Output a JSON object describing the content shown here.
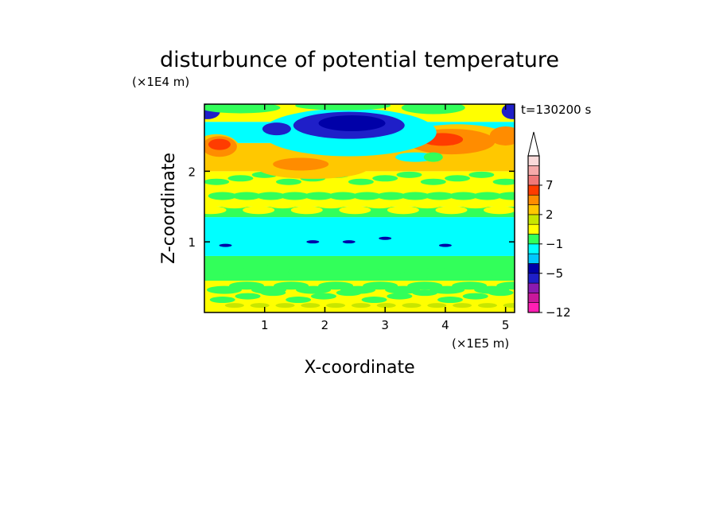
{
  "chart_data": {
    "type": "heatmap",
    "title": "disturbunce of potential temperature",
    "xlabel": "X-coordinate",
    "ylabel": "Z-coordinate",
    "x_scale_label": "(×1E5 m)",
    "y_scale_label": "(×1E4 m)",
    "time_label": "t=130200 s",
    "xlim": [
      0,
      5.15
    ],
    "ylim": [
      0,
      2.95
    ],
    "x_ticks": [
      "1",
      "2",
      "3",
      "4",
      "5"
    ],
    "y_ticks": [
      "1",
      "2"
    ],
    "colorbar": {
      "tick_labels": [
        "7",
        "2",
        "−1",
        "−5",
        "−12"
      ],
      "levels": [
        -12,
        -10,
        -8,
        -6,
        -5,
        -4,
        -2,
        -1,
        0,
        1,
        2,
        4,
        5,
        7,
        8,
        9,
        10
      ],
      "colors": [
        "#ff1fb4",
        "#c8189b",
        "#8a1ab0",
        "#1f1fc8",
        "#0000a8",
        "#00c8ff",
        "#00ffff",
        "#32ff5a",
        "#ffff00",
        "#c8e600",
        "#ffc800",
        "#ff8c00",
        "#ff3c00",
        "#f07878",
        "#f5aaaa",
        "#fadada"
      ]
    },
    "bands": [
      {
        "zmin": 0.0,
        "zmax": 0.45,
        "level": "yellow"
      },
      {
        "zmin": 0.45,
        "zmax": 0.8,
        "level": "green"
      },
      {
        "zmin": 0.8,
        "zmax": 1.35,
        "level": "cyan"
      },
      {
        "zmin": 1.35,
        "zmax": 1.5,
        "level": "green"
      },
      {
        "zmin": 1.5,
        "zmax": 2.0,
        "level": "yellow"
      },
      {
        "zmin": 2.0,
        "zmax": 2.4,
        "level": "orange"
      },
      {
        "zmin": 2.4,
        "zmax": 2.7,
        "level": "cyan"
      },
      {
        "zmin": 2.7,
        "zmax": 2.95,
        "level": "yellow"
      }
    ]
  }
}
